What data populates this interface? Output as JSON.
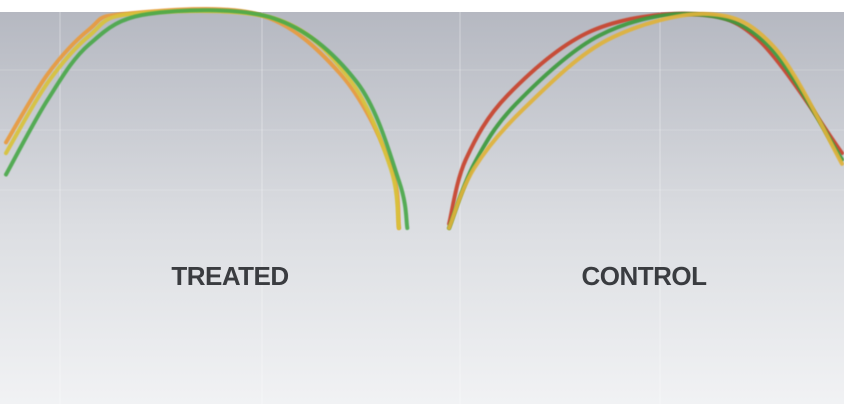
{
  "chart_data": {
    "type": "line",
    "title": "",
    "xlabel": "",
    "ylabel": "",
    "grid": true,
    "legend": "none",
    "regions": [
      {
        "label": "TREATED"
      },
      {
        "label": "CONTROL"
      }
    ],
    "series": [
      {
        "color": "#e89a3c",
        "x": [
          0.0,
          0.05,
          0.1,
          0.14,
          0.3,
          0.4,
          0.46,
          0.47
        ],
        "y": [
          0.4,
          0.72,
          0.93,
          1.0,
          1.0,
          0.72,
          0.3,
          0.0
        ]
      },
      {
        "color": "#d8c23a",
        "x": [
          0.0,
          0.05,
          0.1,
          0.15,
          0.32,
          0.41,
          0.46,
          0.47
        ],
        "y": [
          0.35,
          0.68,
          0.9,
          1.0,
          0.98,
          0.7,
          0.28,
          0.0
        ]
      },
      {
        "color": "#4aa84a",
        "x": [
          0.0,
          0.05,
          0.1,
          0.17,
          0.32,
          0.42,
          0.47,
          0.48
        ],
        "y": [
          0.25,
          0.6,
          0.86,
          1.0,
          0.98,
          0.68,
          0.22,
          0.0
        ]
      },
      {
        "color": "#c8432e",
        "x": [
          0.53,
          0.55,
          0.6,
          0.7,
          0.82,
          0.9,
          1.0
        ],
        "y": [
          0.02,
          0.32,
          0.62,
          0.92,
          1.0,
          0.88,
          0.35
        ]
      },
      {
        "color": "#3c9a3c",
        "x": [
          0.53,
          0.56,
          0.61,
          0.71,
          0.82,
          0.91,
          1.0
        ],
        "y": [
          0.0,
          0.3,
          0.58,
          0.9,
          1.0,
          0.86,
          0.32
        ]
      },
      {
        "color": "#e0b23a",
        "x": [
          0.53,
          0.56,
          0.62,
          0.72,
          0.84,
          0.92,
          1.0
        ],
        "y": [
          0.0,
          0.28,
          0.56,
          0.88,
          1.0,
          0.84,
          0.3
        ]
      }
    ],
    "colors": {
      "background_top": "#b5b8c1",
      "background_bottom": "#f1f2f4",
      "grid": "#ffffff",
      "label": "#3a3c40"
    }
  }
}
